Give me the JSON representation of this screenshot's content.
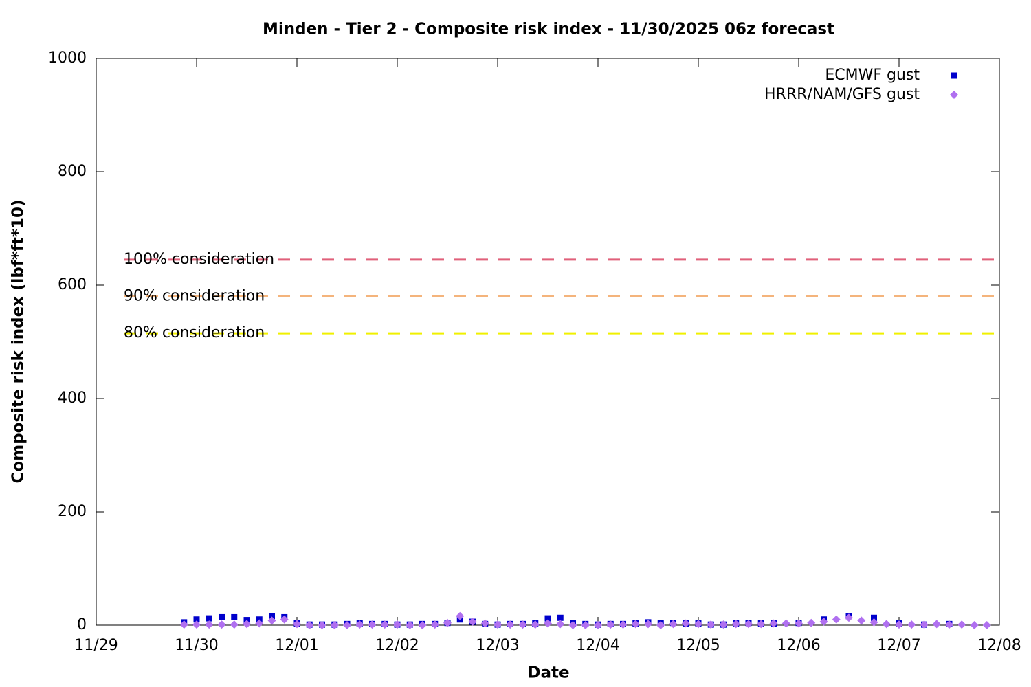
{
  "chart_data": {
    "type": "scatter",
    "title": "Minden - Tier 2 - Composite risk index - 11/30/2025 06z forecast",
    "xlabel": "Date",
    "ylabel": "Composite risk index (lbf*ft*10)",
    "xlim": [
      0,
      9
    ],
    "xticks": [
      {
        "value": 0,
        "label": "11/29"
      },
      {
        "value": 1,
        "label": "11/30"
      },
      {
        "value": 2,
        "label": "12/01"
      },
      {
        "value": 3,
        "label": "12/02"
      },
      {
        "value": 4,
        "label": "12/03"
      },
      {
        "value": 5,
        "label": "12/04"
      },
      {
        "value": 6,
        "label": "12/05"
      },
      {
        "value": 7,
        "label": "12/06"
      },
      {
        "value": 8,
        "label": "12/07"
      },
      {
        "value": 9,
        "label": "12/08"
      }
    ],
    "ylim": [
      0,
      1000
    ],
    "yticks": [
      0,
      200,
      400,
      600,
      800,
      1000
    ],
    "grid": false,
    "legend": "top-right",
    "thresholds": [
      {
        "label": "100% consideration",
        "value": 645,
        "color": "#e0607a"
      },
      {
        "label": "90% consideration",
        "value": 580,
        "color": "#f4b47c"
      },
      {
        "label": "80% consideration",
        "value": 515,
        "color": "#f0f000"
      }
    ],
    "series": [
      {
        "name": "ECMWF gust",
        "color": "#0000cc",
        "marker": "square",
        "x": [
          0.875,
          1,
          1.125,
          1.25,
          1.375,
          1.5,
          1.625,
          1.75,
          1.875,
          2,
          2.125,
          2.25,
          2.375,
          2.5,
          2.625,
          2.75,
          2.875,
          3,
          3.125,
          3.25,
          3.375,
          3.5,
          3.625,
          3.75,
          3.875,
          4,
          4.125,
          4.25,
          4.375,
          4.5,
          4.625,
          4.75,
          4.875,
          5,
          5.125,
          5.25,
          5.375,
          5.5,
          5.625,
          5.75,
          5.875,
          6,
          6.125,
          6.25,
          6.375,
          6.5,
          6.625,
          6.75,
          7,
          7.25,
          7.5,
          7.75,
          8,
          8.25,
          8.5
        ],
        "values": [
          5,
          10,
          12,
          14,
          14,
          9,
          10,
          16,
          14,
          3,
          1,
          1,
          1,
          2,
          3,
          2,
          2,
          1,
          1,
          2,
          2,
          4,
          10,
          6,
          2,
          1,
          2,
          2,
          3,
          12,
          13,
          3,
          2,
          1,
          2,
          2,
          3,
          5,
          3,
          4,
          3,
          3,
          1,
          1,
          3,
          4,
          3,
          3,
          4,
          10,
          16,
          13,
          3,
          1,
          2
        ]
      },
      {
        "name": "HRRR/NAM/GFS gust",
        "color": "#b070f0",
        "marker": "diamond",
        "x": [
          0.875,
          1,
          1.125,
          1.25,
          1.375,
          1.5,
          1.625,
          1.75,
          1.875,
          2,
          2.125,
          2.25,
          2.375,
          2.5,
          2.625,
          2.75,
          2.875,
          3,
          3.125,
          3.25,
          3.375,
          3.5,
          3.625,
          3.75,
          3.875,
          4,
          4.125,
          4.25,
          4.375,
          4.5,
          4.625,
          4.75,
          4.875,
          5,
          5.125,
          5.25,
          5.375,
          5.5,
          5.625,
          5.75,
          5.875,
          6,
          6.125,
          6.25,
          6.375,
          6.5,
          6.625,
          6.75,
          6.875,
          7,
          7.125,
          7.25,
          7.375,
          7.5,
          7.625,
          7.75,
          7.875,
          8,
          8.125,
          8.25,
          8.375,
          8.5,
          8.625,
          8.75,
          8.875
        ],
        "values": [
          1,
          1,
          1,
          1,
          1,
          2,
          3,
          8,
          10,
          2,
          0,
          0,
          0,
          0,
          1,
          1,
          1,
          1,
          0,
          0,
          1,
          4,
          16,
          6,
          3,
          1,
          1,
          1,
          1,
          3,
          2,
          0,
          0,
          0,
          1,
          1,
          2,
          2,
          0,
          2,
          3,
          2,
          1,
          1,
          2,
          2,
          2,
          3,
          3,
          3,
          4,
          6,
          10,
          13,
          8,
          5,
          2,
          1,
          1,
          1,
          2,
          1,
          1,
          0,
          0
        ]
      }
    ]
  }
}
